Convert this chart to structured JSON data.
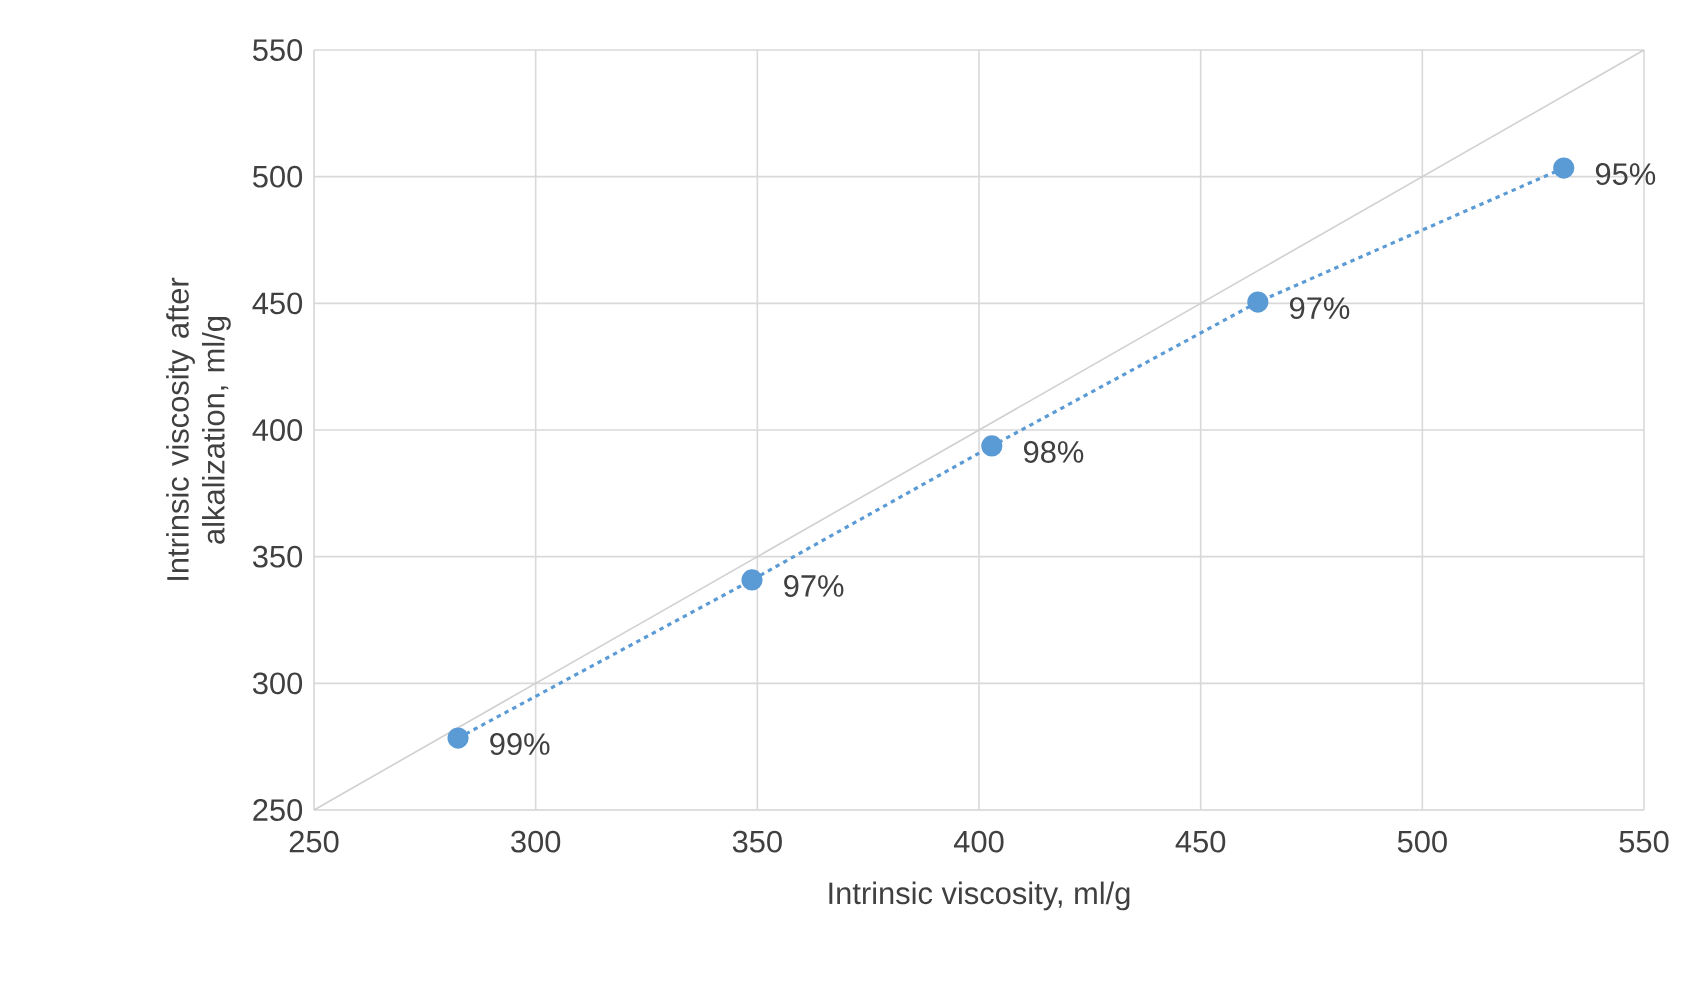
{
  "chart_data": {
    "type": "scatter",
    "xlabel": "Intrinsic viscosity, ml/g",
    "ylabel": "Intrinsic viscosity after alkalization, ml/g",
    "xlim": [
      250,
      550
    ],
    "ylim": [
      250,
      550
    ],
    "xticks": [
      250,
      300,
      350,
      400,
      450,
      500,
      550
    ],
    "yticks": [
      250,
      300,
      350,
      400,
      450,
      500,
      550
    ],
    "grid": true,
    "series": [
      {
        "type": "line",
        "color": "#d0d0d0",
        "x": [
          250,
          550
        ],
        "values": [
          250,
          550
        ],
        "marker": "none",
        "line_style": "solid"
      },
      {
        "color": "#5b9bd5",
        "x": [
          282.5,
          348.8,
          402.9,
          462.9,
          531.9
        ],
        "values": [
          278.4,
          340.8,
          393.7,
          450.5,
          503.4
        ],
        "marker": "circle",
        "line_style": "dotted"
      }
    ],
    "annotations": [
      {
        "text": "99%",
        "x": 282.5,
        "y": 278.4
      },
      {
        "text": "97%",
        "x": 348.8,
        "y": 340.8
      },
      {
        "text": "98%",
        "x": 402.9,
        "y": 393.7
      },
      {
        "text": "97%",
        "x": 462.9,
        "y": 450.5
      },
      {
        "text": "95%",
        "x": 531.9,
        "y": 503.4
      }
    ]
  }
}
